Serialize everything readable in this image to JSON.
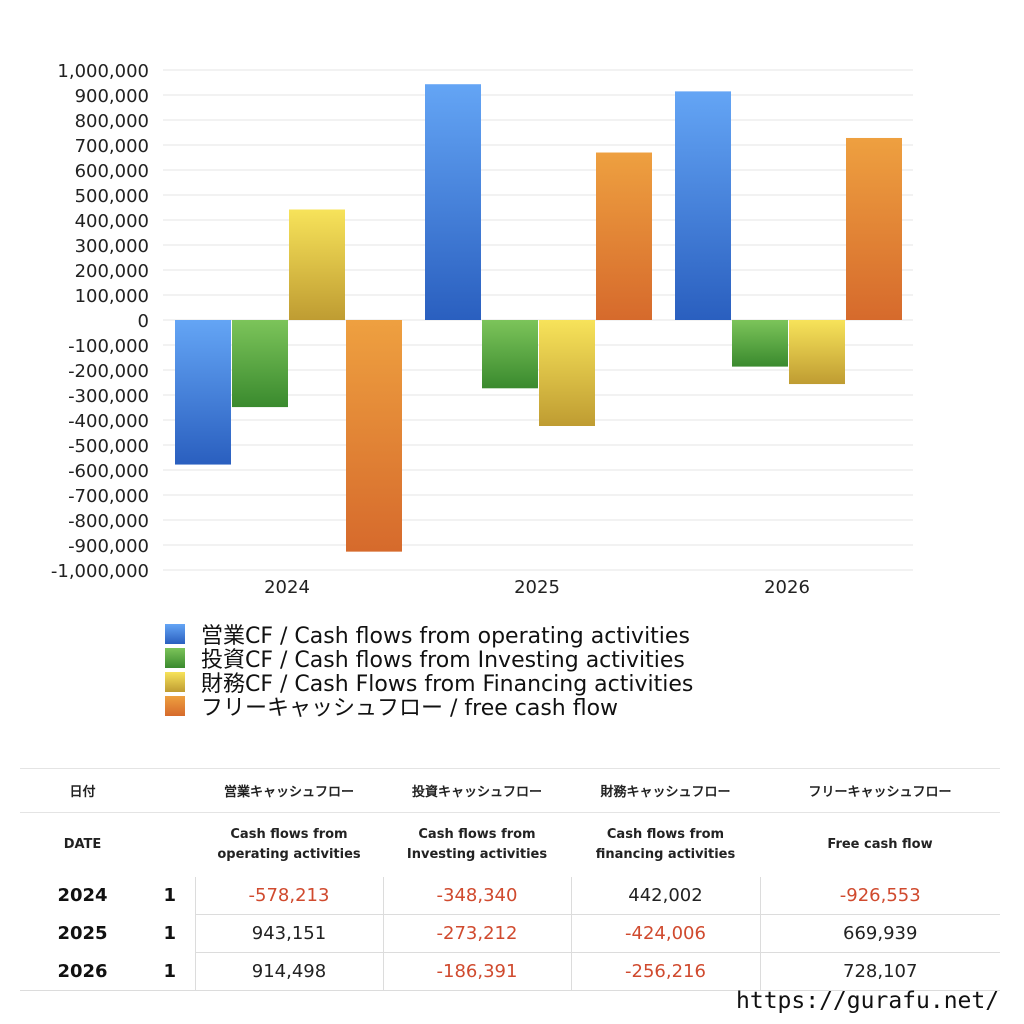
{
  "chart_data": {
    "type": "bar",
    "title": "",
    "xlabel": "",
    "ylabel": "",
    "categories": [
      "2024",
      "2025",
      "2026"
    ],
    "ylim": [
      -1000000,
      1000000
    ],
    "ytick_step": 100000,
    "yticks": [
      "1,000,000",
      "900,000",
      "800,000",
      "700,000",
      "600,000",
      "500,000",
      "400,000",
      "300,000",
      "200,000",
      "100,000",
      "0",
      "-100,000",
      "-200,000",
      "-300,000",
      "-400,000",
      "-500,000",
      "-600,000",
      "-700,000",
      "-800,000",
      "-900,000",
      "-1,000,000"
    ],
    "grid": true,
    "legend_position": "bottom-left",
    "series": [
      {
        "name": "営業CF / Cash flows from operating activities",
        "values": [
          -578213,
          943151,
          914498
        ],
        "color_top": "#64a5f5",
        "color_bottom": "#2a5fbf"
      },
      {
        "name": "投資CF / Cash flows from Investing activities",
        "values": [
          -348340,
          -273212,
          -186391
        ],
        "color_top": "#7cc45a",
        "color_bottom": "#3a8a2e"
      },
      {
        "name": "財務CF / Cash Flows from Financing activities",
        "values": [
          442002,
          -424006,
          -256216
        ],
        "color_top": "#f7e35a",
        "color_bottom": "#bf9c32"
      },
      {
        "name": "フリーキャッシュフロー / free cash flow",
        "values": [
          -926553,
          669939,
          728107
        ],
        "color_top": "#eea040",
        "color_bottom": "#d66a2c"
      }
    ]
  },
  "table": {
    "headers_jp": [
      "日付",
      "",
      "営業キャッシュフロー",
      "投資キャッシュフロー",
      "財務キャッシュフロー",
      "フリーキャッシュフロー"
    ],
    "headers_en": [
      "DATE",
      "",
      "Cash flows from\noperating activities",
      "Cash flows from\nInvesting activities",
      "Cash flows from\nfinancing activities",
      "Free cash flow"
    ],
    "rows": [
      {
        "date": "2024",
        "idx": "1",
        "values": [
          "-578,213",
          "-348,340",
          "442,002",
          "-926,553"
        ]
      },
      {
        "date": "2025",
        "idx": "1",
        "values": [
          "943,151",
          "-273,212",
          "-424,006",
          "669,939"
        ]
      },
      {
        "date": "2026",
        "idx": "1",
        "values": [
          "914,498",
          "-186,391",
          "-256,216",
          "728,107"
        ]
      }
    ]
  },
  "source_url": "https://gurafu.net/",
  "colors": {
    "negative_text": "#d04a2e",
    "positive_text": "#222222",
    "grid": "#e6e6e6"
  }
}
